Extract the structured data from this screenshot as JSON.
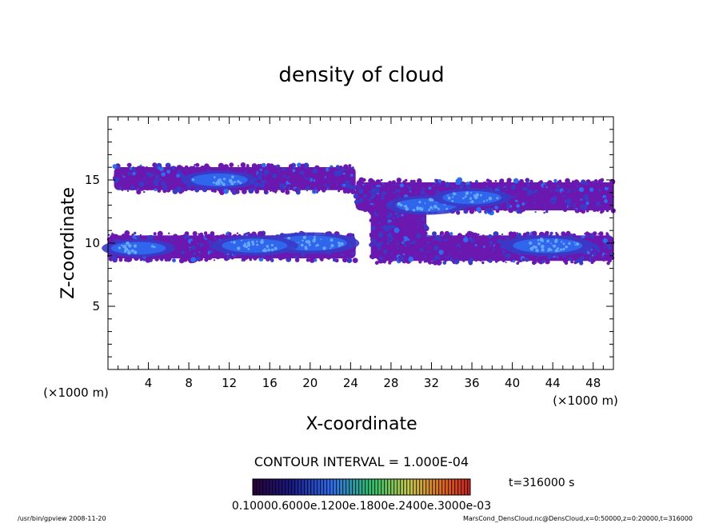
{
  "chart_data": {
    "type": "heatmap",
    "title": "density of cloud",
    "xlabel": "X-coordinate",
    "ylabel": "Z-coordinate",
    "x_unit": "(×1000 m)",
    "y_unit": "(×1000 m)",
    "xlim": [
      0,
      50
    ],
    "ylim": [
      0,
      20
    ],
    "x_ticks": [
      4,
      8,
      12,
      16,
      20,
      24,
      28,
      32,
      36,
      40,
      44,
      48
    ],
    "y_ticks": [
      5,
      10,
      15
    ],
    "contour_interval": "CONTOUR INTERVAL = 1.000E-04",
    "time_label": "t=316000 s",
    "colorbar_labels": "0.10000.6000e.1200e.1800e.2400e.3000e-03",
    "footer_left": "/usr/bin/gpview  2008-11-20",
    "footer_right": "MarsCond_DensCloud.nc@DensCloud,x=0:50000,z=0:20000,t=316000",
    "grid": false,
    "colors": {
      "low": "#6a18b0",
      "mid": "#3a3ac8",
      "high": "#2f6cf0",
      "peak": "#66a8ff"
    },
    "cloud_bands": [
      {
        "name": "upper-left band",
        "x": [
          0.6,
          24.5
        ],
        "z": [
          14.0,
          16.2
        ]
      },
      {
        "name": "upper-right band",
        "x": [
          24.5,
          50
        ],
        "z": [
          12.4,
          15.0
        ]
      },
      {
        "name": "lower-left band",
        "x": [
          0,
          24.5
        ],
        "z": [
          8.6,
          10.8
        ]
      },
      {
        "name": "lower-right band",
        "x": [
          26.5,
          50
        ],
        "z": [
          8.4,
          10.8
        ]
      },
      {
        "name": "central connector",
        "x": [
          26.0,
          31.5
        ],
        "z": [
          8.6,
          14.0
        ]
      }
    ],
    "density_peaks": [
      {
        "x": 20.0,
        "z": 10.0,
        "value": 0.9
      },
      {
        "x": 14.5,
        "z": 9.8,
        "value": 0.7
      },
      {
        "x": 43.5,
        "z": 9.8,
        "value": 0.8
      },
      {
        "x": 31.5,
        "z": 13.0,
        "value": 0.6
      },
      {
        "x": 11.0,
        "z": 15.0,
        "value": 0.5
      },
      {
        "x": 36.0,
        "z": 13.6,
        "value": 0.55
      },
      {
        "x": 3.0,
        "z": 9.6,
        "value": 0.45
      }
    ]
  }
}
